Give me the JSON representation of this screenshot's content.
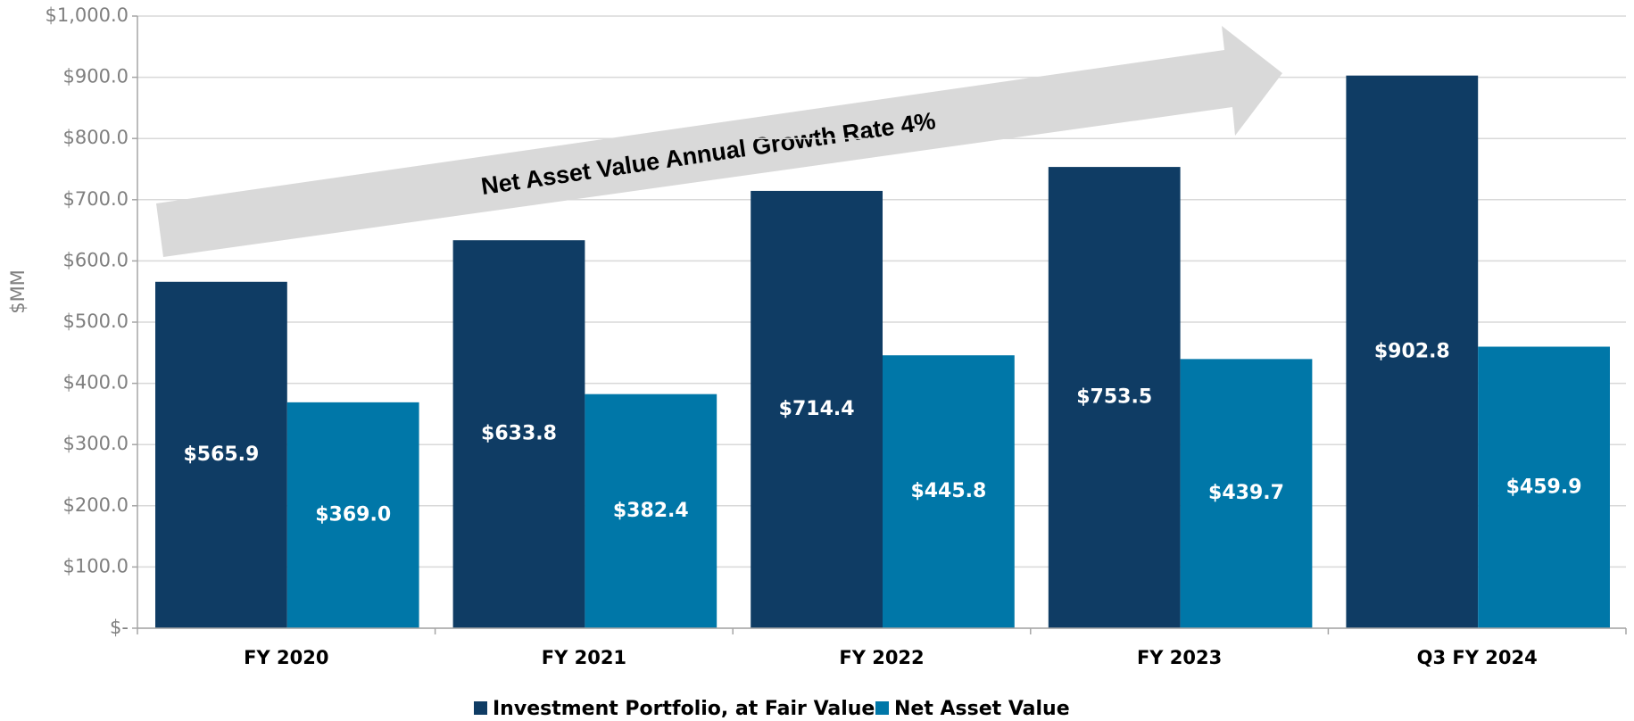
{
  "chart_data": {
    "type": "bar",
    "annotation": "Net Asset Value Annual Growth Rate 4%",
    "y_label": "$MM",
    "categories": [
      "FY 2020",
      "FY 2021",
      "FY 2022",
      "FY 2023",
      "Q3 FY 2024"
    ],
    "series": [
      {
        "name": "Investment Portfolio, at Fair Value",
        "color": "#0f3c64",
        "values": [
          565.9,
          633.8,
          714.4,
          753.5,
          902.8
        ],
        "value_labels": [
          "$565.9",
          "$633.8",
          "$714.4",
          "$753.5",
          "$902.8"
        ]
      },
      {
        "name": "Net Asset Value",
        "color": "#0077a8",
        "values": [
          369.0,
          382.4,
          445.8,
          439.7,
          459.9
        ],
        "value_labels": [
          "$369.0",
          "$382.4",
          "$445.8",
          "$439.7",
          "$459.9"
        ]
      }
    ],
    "ylim": [
      0,
      1000
    ],
    "yticks": [
      {
        "value": 0,
        "label": "$-"
      },
      {
        "value": 100,
        "label": "$100.0"
      },
      {
        "value": 200,
        "label": "$200.0"
      },
      {
        "value": 300,
        "label": "$300.0"
      },
      {
        "value": 400,
        "label": "$400.0"
      },
      {
        "value": 500,
        "label": "$500.0"
      },
      {
        "value": 600,
        "label": "$600.0"
      },
      {
        "value": 700,
        "label": "$700.0"
      },
      {
        "value": 800,
        "label": "$800.0"
      },
      {
        "value": 900,
        "label": "$900.0"
      },
      {
        "value": 1000,
        "label": "$1,000.0"
      }
    ],
    "grid": true,
    "legend": "bottom"
  }
}
